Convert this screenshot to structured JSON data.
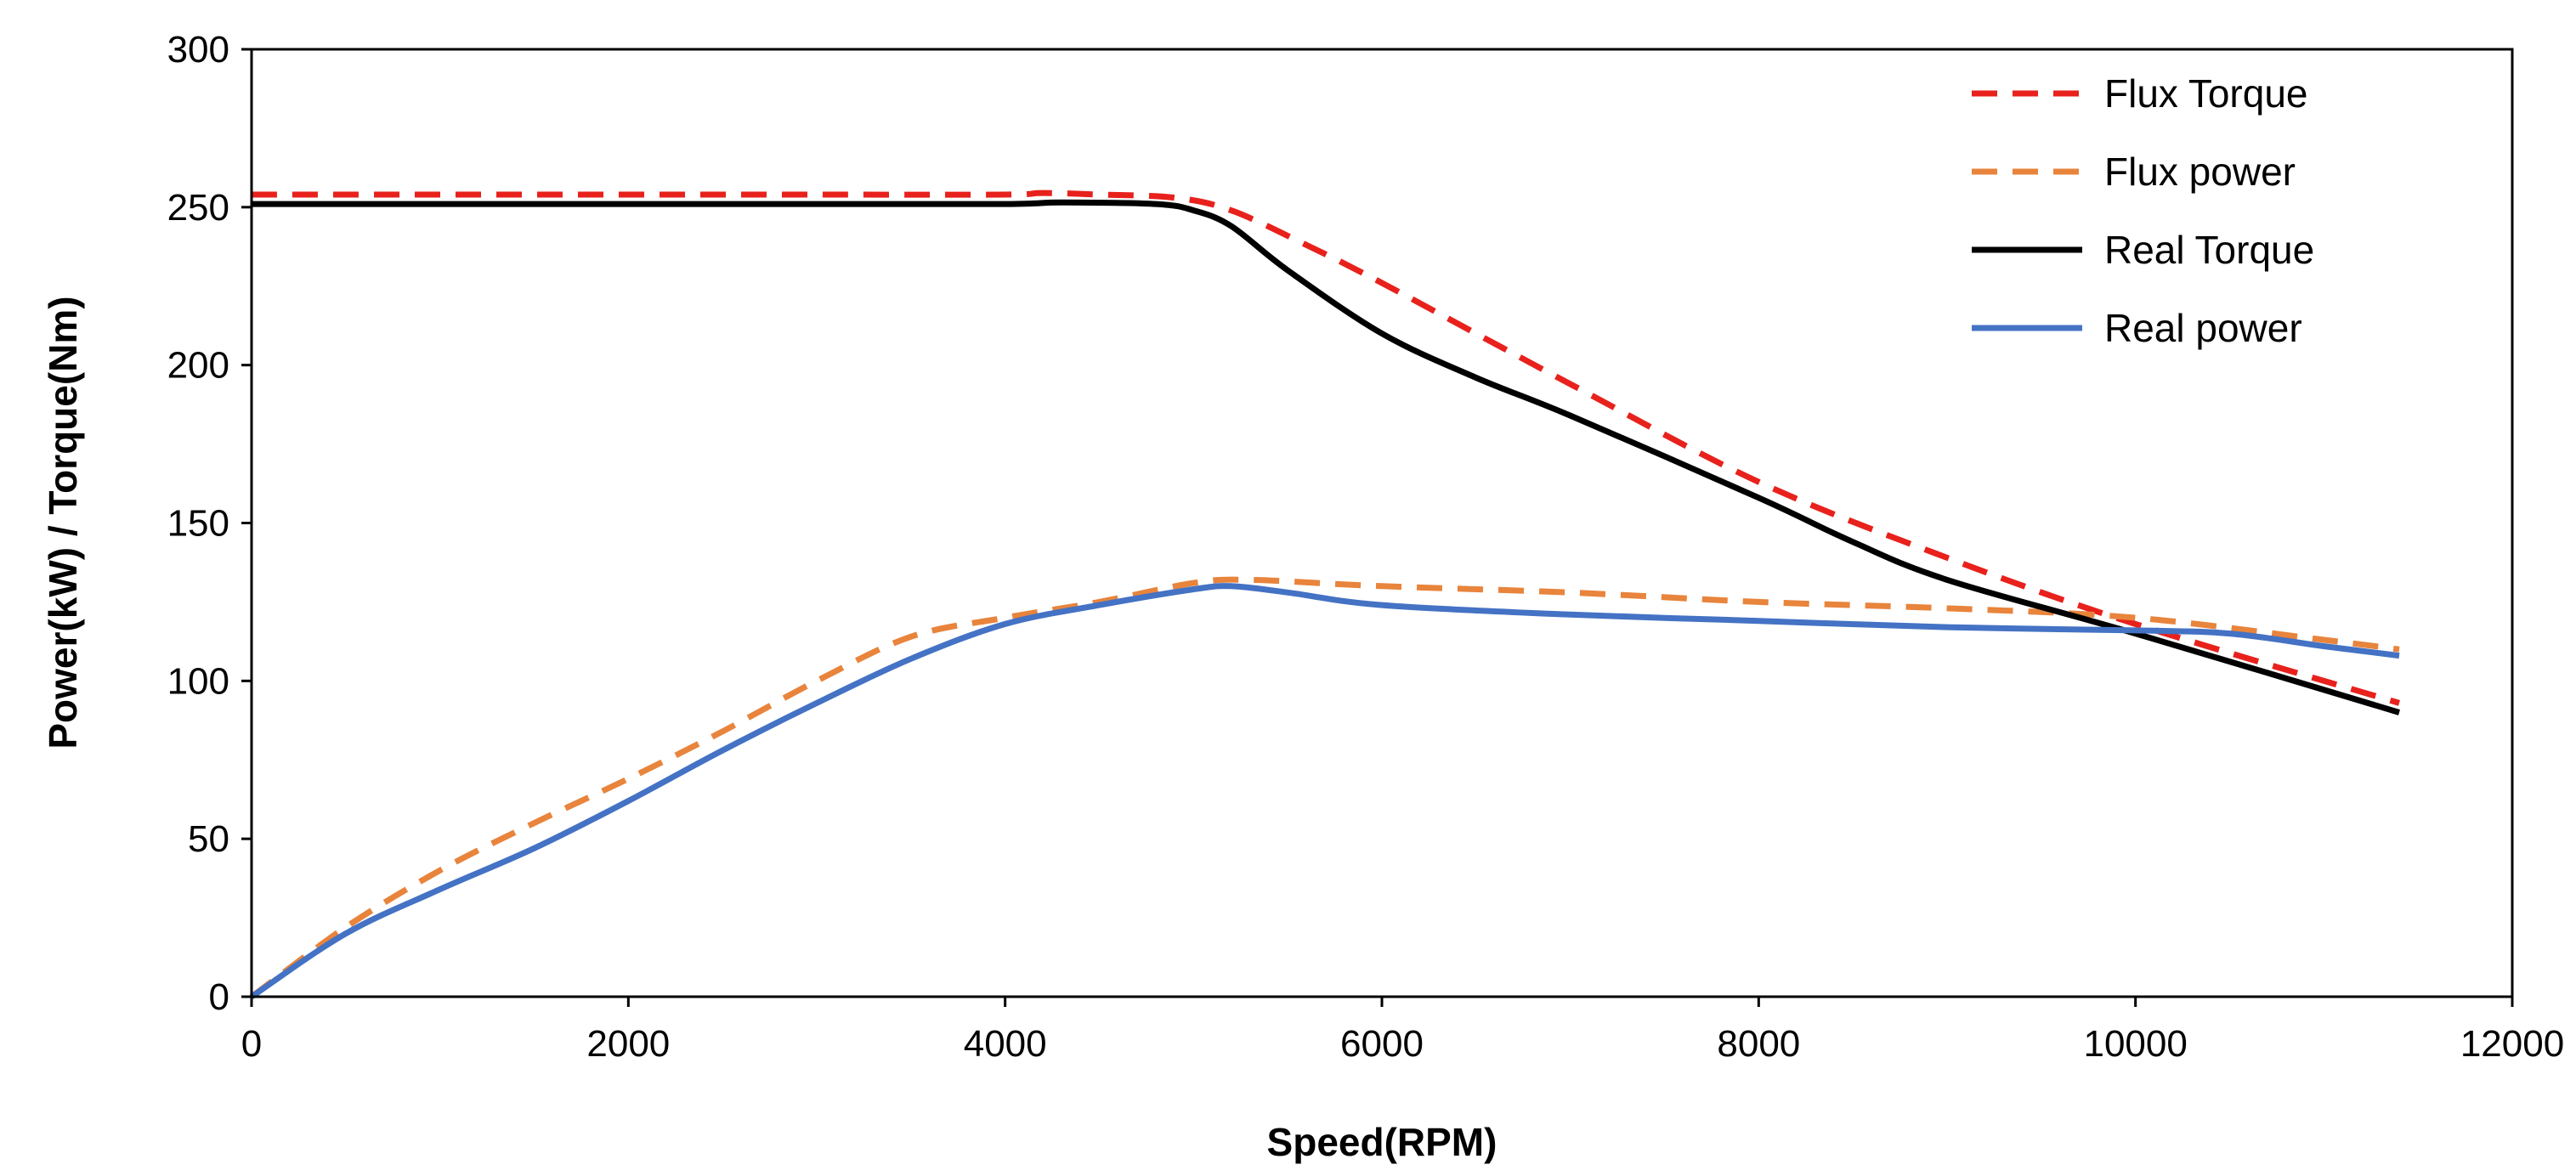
{
  "chart_data": {
    "type": "line",
    "title": "",
    "xlabel": "Speed(RPM)",
    "ylabel": "Power(kW) / Torque(Nm)",
    "xlim": [
      0,
      12000
    ],
    "ylim": [
      0,
      300
    ],
    "xticks": [
      0,
      2000,
      4000,
      6000,
      8000,
      10000,
      12000
    ],
    "yticks": [
      0,
      50,
      100,
      150,
      200,
      250,
      300
    ],
    "xtick_labels": [
      "0",
      "2000",
      "4000",
      "6000",
      "8000",
      "10000",
      "12000"
    ],
    "ytick_labels": [
      "0",
      "50",
      "100",
      "150",
      "200",
      "250",
      "300"
    ],
    "grid": false,
    "legend_position": "top-right",
    "series": [
      {
        "name": "Flux Torque",
        "color": "#e8211c",
        "style": "dashed",
        "x": [
          0,
          1000,
          2000,
          3000,
          4000,
          4200,
          4500,
          4900,
          5200,
          5600,
          6000,
          7000,
          8000,
          9000,
          10000,
          11400
        ],
        "values": [
          254,
          254,
          254,
          254,
          254,
          254.5,
          254,
          253,
          249,
          238,
          226,
          194,
          163,
          139,
          118,
          93
        ]
      },
      {
        "name": "Flux power",
        "color": "#e8843c",
        "style": "dashed",
        "x": [
          0,
          500,
          1000,
          1500,
          2000,
          2500,
          3000,
          3500,
          4000,
          4500,
          5000,
          5300,
          6000,
          7000,
          8000,
          9000,
          10000,
          11000,
          11400
        ],
        "values": [
          0,
          22,
          40,
          55,
          69,
          84,
          100,
          114,
          120,
          125,
          131,
          132,
          130,
          128,
          125,
          123,
          120,
          113,
          110
        ]
      },
      {
        "name": "Real Torque",
        "color": "#000000",
        "style": "solid",
        "x": [
          0,
          1000,
          2000,
          3000,
          4000,
          4300,
          4800,
          5000,
          5200,
          5500,
          6000,
          6500,
          7000,
          8000,
          8500,
          9000,
          10000,
          11400
        ],
        "values": [
          251,
          251,
          251,
          251,
          251,
          251.5,
          251,
          249,
          244,
          230,
          210,
          196,
          184,
          158,
          144,
          132,
          115,
          90
        ]
      },
      {
        "name": "Real power",
        "color": "#4472c4",
        "style": "solid",
        "x": [
          0,
          500,
          1000,
          1500,
          2000,
          2500,
          3000,
          3500,
          4000,
          4500,
          5000,
          5200,
          5500,
          6000,
          7000,
          8000,
          9000,
          10000,
          10500,
          11000,
          11400
        ],
        "values": [
          0,
          20,
          34,
          47,
          62,
          78,
          93,
          107,
          118,
          124,
          129,
          130,
          128,
          124,
          121,
          119,
          117,
          116,
          115,
          111,
          108
        ]
      }
    ]
  }
}
